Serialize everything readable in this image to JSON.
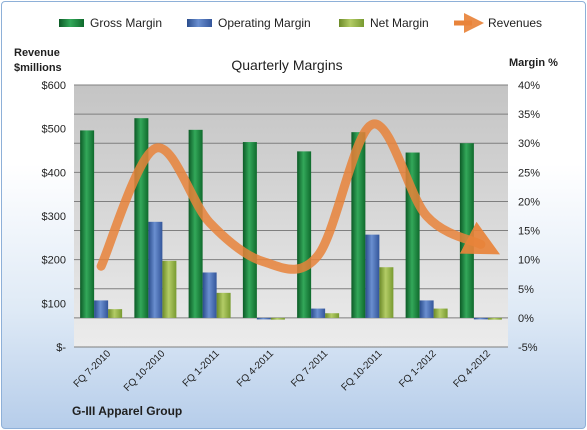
{
  "chart_data": {
    "type": "bar",
    "title": "Quarterly Margins",
    "left_axis_title": "Revenue $millions",
    "right_axis_title": "Margin %",
    "categories": [
      "FQ 7-2010",
      "FQ 10-2010",
      "FQ 1-2011",
      "FQ 4-2011",
      "FQ 7-2011",
      "FQ 10-2011",
      "FQ 1-2012",
      "FQ 4-2012"
    ],
    "left_axis": {
      "ticks": [
        "$600",
        "$500",
        "$400",
        "$300",
        "$200",
        "$100",
        "$-"
      ],
      "range": [
        0,
        600
      ],
      "step": 100
    },
    "right_axis": {
      "ticks": [
        "40%",
        "35%",
        "30%",
        "25%",
        "20%",
        "15%",
        "10%",
        "5%",
        "0%",
        "-5%"
      ],
      "range": [
        -5,
        40
      ],
      "step": 5
    },
    "series": [
      {
        "name": "Gross Margin",
        "axis": "right",
        "color": "#1a8a3c",
        "values": [
          32.2,
          34.3,
          32.3,
          30.2,
          28.6,
          31.9,
          28.4,
          30.0
        ]
      },
      {
        "name": "Operating Margin",
        "axis": "right",
        "color": "#4a6fb8",
        "values": [
          3.0,
          16.5,
          7.8,
          -0.1,
          1.6,
          14.3,
          3.0,
          -0.1
        ]
      },
      {
        "name": "Net Margin",
        "axis": "right",
        "color": "#9ab44a",
        "values": [
          1.5,
          9.8,
          4.3,
          -0.3,
          0.8,
          8.7,
          1.6,
          -0.3
        ]
      },
      {
        "name": "Revenues",
        "axis": "left",
        "type": "line",
        "color": "#e8833a",
        "values": [
          185,
          455,
          285,
          195,
          210,
          510,
          300,
          235
        ]
      }
    ],
    "grid": true,
    "legend": "top"
  },
  "footer": {
    "company": "G-III Apparel Group"
  }
}
